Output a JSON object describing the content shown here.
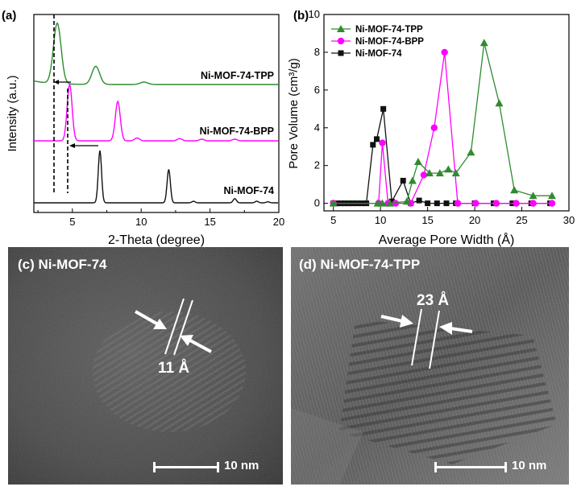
{
  "panel_a": {
    "letter": "(a)",
    "xlabel": "2-Theta (degree)",
    "ylabel": "Intensity (a.u.)",
    "xticks": [
      "5",
      "10",
      "15",
      "20"
    ],
    "traces": [
      {
        "name": "Ni-MOF-74-TPP",
        "color": "#2e8b2e"
      },
      {
        "name": "Ni-MOF-74-BPP",
        "color": "#ff00ff"
      },
      {
        "name": "Ni-MOF-74",
        "color": "#111111"
      }
    ]
  },
  "panel_b": {
    "letter": "(b)",
    "xlabel": "Average Pore Width (Å)",
    "ylabel": "Pore Volume (cm³/g)",
    "xticks": [
      "5",
      "10",
      "15",
      "20",
      "25",
      "30"
    ],
    "yticks": [
      "0",
      "2",
      "4",
      "6",
      "8",
      "10"
    ]
  },
  "panel_c": {
    "label": "(c) Ni-MOF-74",
    "d_spacing": "11 Å",
    "scale": "10 nm"
  },
  "panel_d": {
    "label": "(d) Ni-MOF-74-TPP",
    "d_spacing": "23 Å",
    "scale": "10 nm"
  },
  "chart_data": [
    {
      "type": "line",
      "xlabel": "2-Theta (degree)",
      "ylabel": "Intensity (a.u.)",
      "xlim": [
        2.2,
        20
      ],
      "series": [
        {
          "name": "Ni-MOF-74-TPP",
          "peaks": [
            [
              3.9,
              1.0
            ],
            [
              6.7,
              0.3
            ],
            [
              10.2,
              0.04
            ]
          ]
        },
        {
          "name": "Ni-MOF-74-BPP",
          "peaks": [
            [
              4.8,
              1.0
            ],
            [
              8.3,
              0.7
            ],
            [
              9.7,
              0.05
            ],
            [
              12.8,
              0.04
            ],
            [
              14.4,
              0.03
            ],
            [
              16.8,
              0.03
            ]
          ]
        },
        {
          "name": "Ni-MOF-74",
          "peaks": [
            [
              7.0,
              1.0
            ],
            [
              12.0,
              0.64
            ],
            [
              13.8,
              0.03
            ],
            [
              16.8,
              0.08
            ],
            [
              18.4,
              0.03
            ],
            [
              19.2,
              0.02
            ]
          ]
        }
      ]
    },
    {
      "type": "line",
      "xlabel": "Average Pore Width (Å)",
      "ylabel": "Pore Volume (cm³/g)",
      "xlim": [
        4,
        30
      ],
      "ylim": [
        -0.4,
        10
      ],
      "legend": "top-left",
      "series": [
        {
          "name": "Ni-MOF-74-TPP",
          "color": "#2e8b2e",
          "marker": "triangle",
          "x": [
            5,
            9.7,
            10.2,
            11,
            12.8,
            13.4,
            14,
            15.2,
            16.3,
            17.2,
            18,
            19.6,
            21,
            22.6,
            24.2,
            26.2,
            28.2
          ],
          "y": [
            0,
            0,
            0,
            0,
            0.1,
            1.2,
            2.2,
            1.6,
            1.6,
            1.8,
            1.6,
            2.7,
            8.5,
            5.3,
            0.7,
            0.4,
            0.4
          ]
        },
        {
          "name": "Ni-MOF-74-BPP",
          "color": "#ff00ff",
          "marker": "circle",
          "x": [
            5,
            9.8,
            10.2,
            10.8,
            11.6,
            13.2,
            14.6,
            15.7,
            16.8,
            18.2,
            20.1,
            22.3,
            24.4,
            26.2,
            28.2
          ],
          "y": [
            0,
            0,
            3.2,
            0,
            0,
            0,
            1.5,
            4,
            8,
            0,
            0,
            0,
            0,
            0,
            0
          ]
        },
        {
          "name": "Ni-MOF-74",
          "color": "#111111",
          "marker": "square",
          "x": [
            5,
            5.4,
            5.8,
            6.2,
            6.6,
            7,
            7.5,
            8,
            8.5,
            9.2,
            9.6,
            10.3,
            11.2,
            12.4,
            13.2,
            14.1,
            15,
            16,
            17,
            18,
            20,
            22,
            24,
            26,
            28
          ],
          "y": [
            0,
            0,
            0,
            0,
            0,
            0,
            0,
            0,
            0,
            3.1,
            3.4,
            5,
            0.1,
            1.2,
            0,
            0.15,
            0,
            0,
            0,
            0,
            0,
            0,
            0,
            0,
            0
          ]
        }
      ]
    }
  ]
}
